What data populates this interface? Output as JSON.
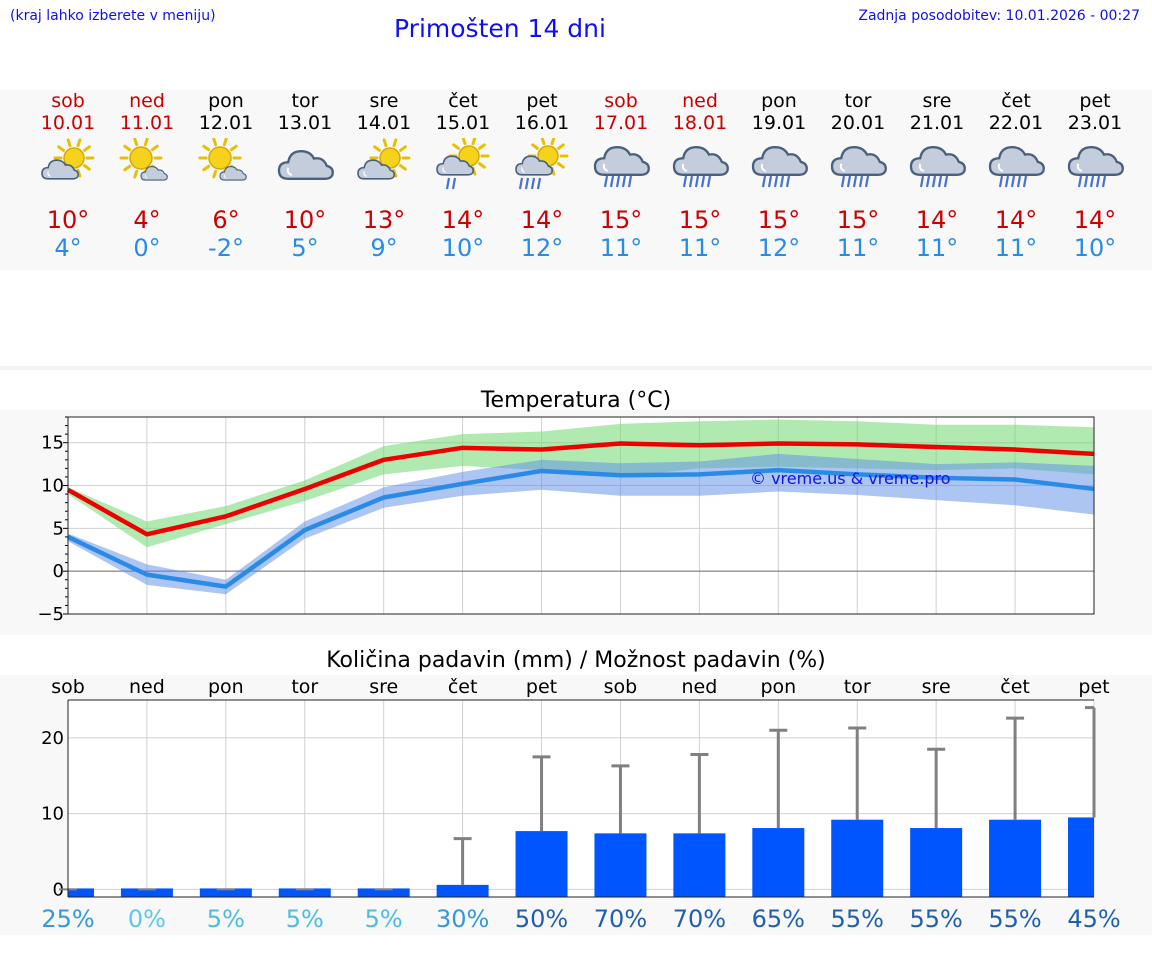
{
  "header": {
    "left_note": "(kraj lahko izberete v meniju)",
    "title": "Primošten 14 dni",
    "updated": "Zadnja posodobitev: 10.01.2026 - 00:27"
  },
  "colors": {
    "accent": "#1010ee",
    "max": "#cc0000",
    "min": "#2a8be6",
    "bar": "#0055ff"
  },
  "days": [
    {
      "name": "sob",
      "date": "10.01",
      "weekend": true,
      "icon": "partly-cloudy-icon",
      "max": "10°",
      "min": "4°"
    },
    {
      "name": "ned",
      "date": "11.01",
      "weekend": true,
      "icon": "sunny-cloud-icon",
      "max": "4°",
      "min": "0°"
    },
    {
      "name": "pon",
      "date": "12.01",
      "weekend": false,
      "icon": "sunny-cloud-icon",
      "max": "6°",
      "min": "-2°"
    },
    {
      "name": "tor",
      "date": "13.01",
      "weekend": false,
      "icon": "cloudy-icon",
      "max": "10°",
      "min": "5°"
    },
    {
      "name": "sre",
      "date": "14.01",
      "weekend": false,
      "icon": "partly-cloudy-icon",
      "max": "13°",
      "min": "9°"
    },
    {
      "name": "čet",
      "date": "15.01",
      "weekend": false,
      "icon": "sun-shower-icon",
      "max": "14°",
      "min": "10°"
    },
    {
      "name": "pet",
      "date": "16.01",
      "weekend": false,
      "icon": "sun-rain-icon",
      "max": "14°",
      "min": "12°"
    },
    {
      "name": "sob",
      "date": "17.01",
      "weekend": true,
      "icon": "rain-icon",
      "max": "15°",
      "min": "11°"
    },
    {
      "name": "ned",
      "date": "18.01",
      "weekend": true,
      "icon": "rain-icon",
      "max": "15°",
      "min": "11°"
    },
    {
      "name": "pon",
      "date": "19.01",
      "weekend": false,
      "icon": "rain-icon",
      "max": "15°",
      "min": "12°"
    },
    {
      "name": "tor",
      "date": "20.01",
      "weekend": false,
      "icon": "rain-icon",
      "max": "15°",
      "min": "11°"
    },
    {
      "name": "sre",
      "date": "21.01",
      "weekend": false,
      "icon": "rain-icon",
      "max": "14°",
      "min": "11°"
    },
    {
      "name": "čet",
      "date": "22.01",
      "weekend": false,
      "icon": "rain-icon",
      "max": "14°",
      "min": "11°"
    },
    {
      "name": "pet",
      "date": "23.01",
      "weekend": false,
      "icon": "rain-icon",
      "max": "14°",
      "min": "10°"
    }
  ],
  "chart_data": [
    {
      "type": "line",
      "title": "Temperatura (°C)",
      "watermark": "© vreme.us & vreme.pro",
      "xlabel": "",
      "ylabel": "",
      "ylim": [
        -5,
        18
      ],
      "yticks": [
        -5,
        0,
        5,
        10,
        15
      ],
      "ytick_labels": [
        "−5",
        "0",
        "5",
        "10",
        "15"
      ],
      "grid": true,
      "x": [
        0,
        1,
        2,
        3,
        4,
        5,
        6,
        7,
        8,
        9,
        10,
        11,
        12,
        13
      ],
      "series": [
        {
          "name": "max",
          "color": "#ee0000",
          "values": [
            9.5,
            4.3,
            6.4,
            9.6,
            13.0,
            14.4,
            14.2,
            14.9,
            14.7,
            14.9,
            14.8,
            14.5,
            14.2,
            13.7
          ],
          "band_low": [
            9.0,
            2.8,
            5.5,
            8.2,
            11.3,
            12.3,
            11.8,
            11.0,
            12.0,
            12.2,
            12.0,
            11.8,
            12.0,
            11.3
          ],
          "band_high": [
            9.8,
            5.8,
            7.6,
            10.6,
            14.6,
            16.0,
            16.3,
            17.2,
            17.5,
            17.7,
            17.5,
            17.1,
            17.1,
            16.8
          ]
        },
        {
          "name": "min",
          "color": "#2a8be6",
          "values": [
            4.0,
            -0.4,
            -1.8,
            4.8,
            8.6,
            10.2,
            11.7,
            11.2,
            11.3,
            11.8,
            11.3,
            10.9,
            10.7,
            9.6
          ],
          "band_low": [
            3.5,
            -1.6,
            -2.7,
            3.8,
            7.4,
            8.8,
            9.5,
            8.8,
            8.8,
            9.3,
            8.9,
            8.3,
            7.7,
            6.6
          ],
          "band_high": [
            4.4,
            0.8,
            -1.0,
            5.8,
            9.8,
            11.6,
            13.0,
            12.6,
            12.8,
            13.7,
            13.1,
            12.5,
            12.7,
            12.3
          ]
        }
      ]
    },
    {
      "type": "bar",
      "title": "Količina padavin (mm) / Možnost padavin (%)",
      "categories": [
        "sob",
        "ned",
        "pon",
        "tor",
        "sre",
        "čet",
        "pet",
        "sob",
        "ned",
        "pon",
        "tor",
        "sre",
        "čet",
        "pet"
      ],
      "ylim": [
        -1,
        25
      ],
      "yticks": [
        0,
        10,
        20
      ],
      "values": [
        0.0,
        0.0,
        0.0,
        0.0,
        0.0,
        0.6,
        7.7,
        7.4,
        7.4,
        8.1,
        9.2,
        8.1,
        9.2,
        9.5
      ],
      "error_high": [
        0.0,
        0.0,
        0.0,
        0.0,
        0.0,
        6.7,
        17.5,
        16.3,
        17.8,
        21.0,
        21.3,
        18.5,
        22.6,
        24.0
      ],
      "probability": [
        "25%",
        "0%",
        "5%",
        "5%",
        "5%",
        "30%",
        "50%",
        "70%",
        "70%",
        "65%",
        "55%",
        "55%",
        "55%",
        "45%"
      ]
    }
  ]
}
